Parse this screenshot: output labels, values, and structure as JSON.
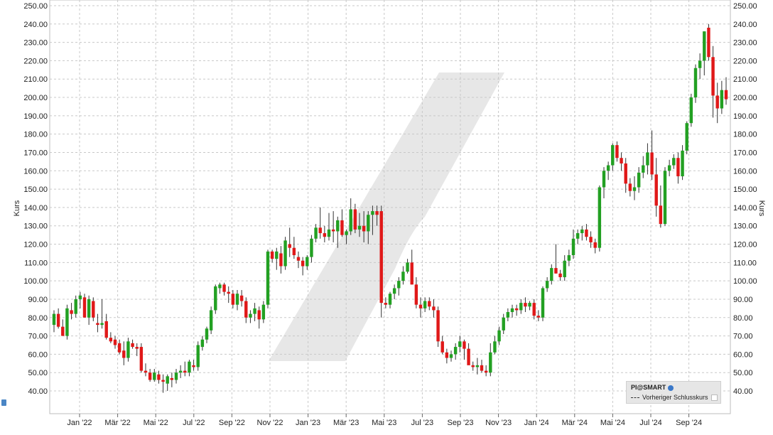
{
  "chart_data": {
    "type": "candlestick",
    "ylabel": "Kurs",
    "ylabel_right": "Kurs",
    "ylim": [
      30,
      250
    ],
    "yticks": [
      "40.00",
      "50.00",
      "60.00",
      "70.00",
      "80.00",
      "90.00",
      "100.00",
      "110.00",
      "120.00",
      "130.00",
      "140.00",
      "150.00",
      "160.00",
      "170.00",
      "180.00",
      "190.00",
      "200.00",
      "210.00",
      "220.00",
      "230.00",
      "240.00",
      "250.00"
    ],
    "ytick_values": [
      40,
      50,
      60,
      70,
      80,
      90,
      100,
      110,
      120,
      130,
      140,
      150,
      160,
      170,
      180,
      190,
      200,
      210,
      220,
      230,
      240,
      250
    ],
    "xticks": [
      "Jan '22",
      "Mär '22",
      "Mai '22",
      "Jul '22",
      "Sep '22",
      "Nov '22",
      "Jan '23",
      "Mär '23",
      "Mai '23",
      "Jul '23",
      "Sep '23",
      "Nov '23",
      "Jan '24",
      "Mär '24",
      "Mai '24",
      "Jul '24",
      "Sep '24"
    ],
    "grid": true,
    "colors": {
      "up": "#22a022",
      "down": "#e01818",
      "wick": "#333333",
      "grid": "#c8c8c8",
      "watermark": "#e3e3e3"
    },
    "legend": {
      "placement": "bottom-right",
      "title": "PI@SMART",
      "entries": [
        "Vorheriger Schlusskurs"
      ]
    },
    "candles": [
      {
        "o": 76,
        "h": 84,
        "l": 72,
        "c": 82
      },
      {
        "o": 82,
        "h": 85,
        "l": 74,
        "c": 75
      },
      {
        "o": 75,
        "h": 79,
        "l": 70,
        "c": 70
      },
      {
        "o": 70,
        "h": 87,
        "l": 68,
        "c": 85
      },
      {
        "o": 84,
        "h": 88,
        "l": 79,
        "c": 82
      },
      {
        "o": 82,
        "h": 92,
        "l": 80,
        "c": 90
      },
      {
        "o": 90,
        "h": 94,
        "l": 85,
        "c": 92
      },
      {
        "o": 91,
        "h": 93,
        "l": 80,
        "c": 80
      },
      {
        "o": 80,
        "h": 92,
        "l": 76,
        "c": 90
      },
      {
        "o": 89,
        "h": 91,
        "l": 78,
        "c": 80
      },
      {
        "o": 77,
        "h": 82,
        "l": 72,
        "c": 76
      },
      {
        "o": 76,
        "h": 90,
        "l": 74,
        "c": 77
      },
      {
        "o": 78,
        "h": 82,
        "l": 68,
        "c": 69
      },
      {
        "o": 69,
        "h": 72,
        "l": 66,
        "c": 67
      },
      {
        "o": 68,
        "h": 70,
        "l": 63,
        "c": 65
      },
      {
        "o": 66,
        "h": 68,
        "l": 60,
        "c": 61
      },
      {
        "o": 62,
        "h": 67,
        "l": 54,
        "c": 58
      },
      {
        "o": 58,
        "h": 69,
        "l": 56,
        "c": 67
      },
      {
        "o": 66,
        "h": 68,
        "l": 63,
        "c": 64
      },
      {
        "o": 64,
        "h": 66,
        "l": 59,
        "c": 63
      },
      {
        "o": 64,
        "h": 66,
        "l": 50,
        "c": 51
      },
      {
        "o": 51,
        "h": 55,
        "l": 48,
        "c": 50
      },
      {
        "o": 50,
        "h": 52,
        "l": 45,
        "c": 46
      },
      {
        "o": 46,
        "h": 52,
        "l": 45,
        "c": 50
      },
      {
        "o": 49,
        "h": 51,
        "l": 44,
        "c": 46
      },
      {
        "o": 46,
        "h": 49,
        "l": 39,
        "c": 45
      },
      {
        "o": 44,
        "h": 49,
        "l": 40,
        "c": 48
      },
      {
        "o": 47,
        "h": 50,
        "l": 42,
        "c": 46
      },
      {
        "o": 46,
        "h": 52,
        "l": 44,
        "c": 50
      },
      {
        "o": 50,
        "h": 54,
        "l": 47,
        "c": 51
      },
      {
        "o": 51,
        "h": 56,
        "l": 48,
        "c": 50
      },
      {
        "o": 50,
        "h": 57,
        "l": 48,
        "c": 56
      },
      {
        "o": 54,
        "h": 57,
        "l": 51,
        "c": 53
      },
      {
        "o": 53,
        "h": 67,
        "l": 51,
        "c": 65
      },
      {
        "o": 64,
        "h": 70,
        "l": 62,
        "c": 68
      },
      {
        "o": 68,
        "h": 75,
        "l": 66,
        "c": 74
      },
      {
        "o": 73,
        "h": 86,
        "l": 71,
        "c": 84
      },
      {
        "o": 84,
        "h": 98,
        "l": 82,
        "c": 97
      },
      {
        "o": 96,
        "h": 99,
        "l": 93,
        "c": 98
      },
      {
        "o": 98,
        "h": 99,
        "l": 92,
        "c": 94
      },
      {
        "o": 94,
        "h": 97,
        "l": 88,
        "c": 93
      },
      {
        "o": 93,
        "h": 95,
        "l": 85,
        "c": 87
      },
      {
        "o": 87,
        "h": 95,
        "l": 84,
        "c": 93
      },
      {
        "o": 92,
        "h": 95,
        "l": 86,
        "c": 89
      },
      {
        "o": 89,
        "h": 91,
        "l": 77,
        "c": 80
      },
      {
        "o": 80,
        "h": 84,
        "l": 77,
        "c": 82
      },
      {
        "o": 82,
        "h": 88,
        "l": 78,
        "c": 85
      },
      {
        "o": 84,
        "h": 86,
        "l": 74,
        "c": 79
      },
      {
        "o": 79,
        "h": 89,
        "l": 77,
        "c": 87
      },
      {
        "o": 87,
        "h": 117,
        "l": 85,
        "c": 116
      },
      {
        "o": 116,
        "h": 117,
        "l": 110,
        "c": 112
      },
      {
        "o": 112,
        "h": 118,
        "l": 106,
        "c": 116
      },
      {
        "o": 115,
        "h": 119,
        "l": 104,
        "c": 108
      },
      {
        "o": 108,
        "h": 124,
        "l": 106,
        "c": 122
      },
      {
        "o": 120,
        "h": 129,
        "l": 113,
        "c": 118
      },
      {
        "o": 118,
        "h": 124,
        "l": 112,
        "c": 114
      },
      {
        "o": 113,
        "h": 116,
        "l": 107,
        "c": 111
      },
      {
        "o": 111,
        "h": 113,
        "l": 103,
        "c": 108
      },
      {
        "o": 108,
        "h": 114,
        "l": 106,
        "c": 113
      },
      {
        "o": 113,
        "h": 125,
        "l": 110,
        "c": 123
      },
      {
        "o": 123,
        "h": 131,
        "l": 121,
        "c": 129
      },
      {
        "o": 129,
        "h": 140,
        "l": 123,
        "c": 126
      },
      {
        "o": 126,
        "h": 130,
        "l": 121,
        "c": 124
      },
      {
        "o": 124,
        "h": 137,
        "l": 122,
        "c": 128
      },
      {
        "o": 128,
        "h": 138,
        "l": 121,
        "c": 127
      },
      {
        "o": 127,
        "h": 135,
        "l": 118,
        "c": 133
      },
      {
        "o": 133,
        "h": 139,
        "l": 124,
        "c": 125
      },
      {
        "o": 125,
        "h": 128,
        "l": 120,
        "c": 127
      },
      {
        "o": 127,
        "h": 145,
        "l": 125,
        "c": 139
      },
      {
        "o": 139,
        "h": 142,
        "l": 126,
        "c": 128
      },
      {
        "o": 128,
        "h": 137,
        "l": 124,
        "c": 130
      },
      {
        "o": 130,
        "h": 138,
        "l": 121,
        "c": 127
      },
      {
        "o": 127,
        "h": 138,
        "l": 120,
        "c": 136
      },
      {
        "o": 136,
        "h": 141,
        "l": 125,
        "c": 138
      },
      {
        "o": 138,
        "h": 141,
        "l": 130,
        "c": 136
      },
      {
        "o": 138,
        "h": 141,
        "l": 80,
        "c": 88
      },
      {
        "o": 88,
        "h": 91,
        "l": 85,
        "c": 87
      },
      {
        "o": 87,
        "h": 94,
        "l": 85,
        "c": 93
      },
      {
        "o": 93,
        "h": 98,
        "l": 90,
        "c": 96
      },
      {
        "o": 96,
        "h": 102,
        "l": 92,
        "c": 100
      },
      {
        "o": 100,
        "h": 108,
        "l": 98,
        "c": 105
      },
      {
        "o": 105,
        "h": 112,
        "l": 104,
        "c": 110
      },
      {
        "o": 110,
        "h": 117,
        "l": 98,
        "c": 98
      },
      {
        "o": 98,
        "h": 102,
        "l": 85,
        "c": 87
      },
      {
        "o": 87,
        "h": 91,
        "l": 80,
        "c": 85
      },
      {
        "o": 85,
        "h": 91,
        "l": 83,
        "c": 89
      },
      {
        "o": 89,
        "h": 91,
        "l": 84,
        "c": 86
      },
      {
        "o": 86,
        "h": 90,
        "l": 80,
        "c": 84
      },
      {
        "o": 84,
        "h": 86,
        "l": 64,
        "c": 67
      },
      {
        "o": 67,
        "h": 70,
        "l": 60,
        "c": 61
      },
      {
        "o": 61,
        "h": 63,
        "l": 55,
        "c": 58
      },
      {
        "o": 58,
        "h": 62,
        "l": 56,
        "c": 60
      },
      {
        "o": 60,
        "h": 66,
        "l": 57,
        "c": 64
      },
      {
        "o": 64,
        "h": 70,
        "l": 61,
        "c": 67
      },
      {
        "o": 67,
        "h": 68,
        "l": 57,
        "c": 63
      },
      {
        "o": 63,
        "h": 66,
        "l": 55,
        "c": 54
      },
      {
        "o": 54,
        "h": 56,
        "l": 51,
        "c": 53
      },
      {
        "o": 53,
        "h": 58,
        "l": 49,
        "c": 54
      },
      {
        "o": 54,
        "h": 57,
        "l": 50,
        "c": 51
      },
      {
        "o": 51,
        "h": 54,
        "l": 48,
        "c": 50
      },
      {
        "o": 50,
        "h": 66,
        "l": 48,
        "c": 61
      },
      {
        "o": 61,
        "h": 70,
        "l": 60,
        "c": 67
      },
      {
        "o": 67,
        "h": 75,
        "l": 65,
        "c": 73
      },
      {
        "o": 73,
        "h": 82,
        "l": 71,
        "c": 80
      },
      {
        "o": 80,
        "h": 85,
        "l": 78,
        "c": 83
      },
      {
        "o": 83,
        "h": 87,
        "l": 80,
        "c": 85
      },
      {
        "o": 85,
        "h": 87,
        "l": 81,
        "c": 84
      },
      {
        "o": 84,
        "h": 90,
        "l": 82,
        "c": 88
      },
      {
        "o": 88,
        "h": 91,
        "l": 83,
        "c": 86
      },
      {
        "o": 86,
        "h": 89,
        "l": 84,
        "c": 88
      },
      {
        "o": 88,
        "h": 90,
        "l": 79,
        "c": 81
      },
      {
        "o": 81,
        "h": 84,
        "l": 78,
        "c": 80
      },
      {
        "o": 80,
        "h": 97,
        "l": 78,
        "c": 96
      },
      {
        "o": 96,
        "h": 102,
        "l": 94,
        "c": 100
      },
      {
        "o": 100,
        "h": 109,
        "l": 98,
        "c": 107
      },
      {
        "o": 107,
        "h": 120,
        "l": 104,
        "c": 104
      },
      {
        "o": 104,
        "h": 106,
        "l": 100,
        "c": 102
      },
      {
        "o": 102,
        "h": 114,
        "l": 100,
        "c": 111
      },
      {
        "o": 111,
        "h": 117,
        "l": 108,
        "c": 114
      },
      {
        "o": 114,
        "h": 128,
        "l": 112,
        "c": 123
      },
      {
        "o": 123,
        "h": 128,
        "l": 120,
        "c": 126
      },
      {
        "o": 126,
        "h": 130,
        "l": 122,
        "c": 128
      },
      {
        "o": 128,
        "h": 131,
        "l": 122,
        "c": 124
      },
      {
        "o": 124,
        "h": 127,
        "l": 118,
        "c": 121
      },
      {
        "o": 121,
        "h": 123,
        "l": 115,
        "c": 118
      },
      {
        "o": 118,
        "h": 152,
        "l": 116,
        "c": 151
      },
      {
        "o": 151,
        "h": 162,
        "l": 145,
        "c": 160
      },
      {
        "o": 160,
        "h": 165,
        "l": 155,
        "c": 163
      },
      {
        "o": 163,
        "h": 175,
        "l": 160,
        "c": 174
      },
      {
        "o": 174,
        "h": 176,
        "l": 165,
        "c": 167
      },
      {
        "o": 167,
        "h": 170,
        "l": 160,
        "c": 164
      },
      {
        "o": 164,
        "h": 167,
        "l": 148,
        "c": 153
      },
      {
        "o": 153,
        "h": 156,
        "l": 146,
        "c": 149
      },
      {
        "o": 149,
        "h": 157,
        "l": 144,
        "c": 151
      },
      {
        "o": 151,
        "h": 162,
        "l": 148,
        "c": 159
      },
      {
        "o": 159,
        "h": 168,
        "l": 156,
        "c": 163
      },
      {
        "o": 163,
        "h": 175,
        "l": 158,
        "c": 170
      },
      {
        "o": 170,
        "h": 182,
        "l": 155,
        "c": 158
      },
      {
        "o": 158,
        "h": 167,
        "l": 135,
        "c": 141
      },
      {
        "o": 141,
        "h": 152,
        "l": 129,
        "c": 131
      },
      {
        "o": 131,
        "h": 162,
        "l": 130,
        "c": 160
      },
      {
        "o": 160,
        "h": 166,
        "l": 157,
        "c": 163
      },
      {
        "o": 163,
        "h": 169,
        "l": 161,
        "c": 167
      },
      {
        "o": 167,
        "h": 170,
        "l": 153,
        "c": 157
      },
      {
        "o": 157,
        "h": 174,
        "l": 155,
        "c": 171
      },
      {
        "o": 171,
        "h": 187,
        "l": 169,
        "c": 186
      },
      {
        "o": 186,
        "h": 202,
        "l": 184,
        "c": 200
      },
      {
        "o": 200,
        "h": 218,
        "l": 197,
        "c": 216
      },
      {
        "o": 216,
        "h": 224,
        "l": 210,
        "c": 220
      },
      {
        "o": 220,
        "h": 236,
        "l": 212,
        "c": 236
      },
      {
        "o": 238,
        "h": 240,
        "l": 220,
        "c": 222
      },
      {
        "o": 222,
        "h": 228,
        "l": 189,
        "c": 201
      },
      {
        "o": 201,
        "h": 208,
        "l": 186,
        "c": 194
      },
      {
        "o": 194,
        "h": 209,
        "l": 191,
        "c": 204
      },
      {
        "o": 204,
        "h": 211,
        "l": 196,
        "c": 199
      }
    ]
  }
}
